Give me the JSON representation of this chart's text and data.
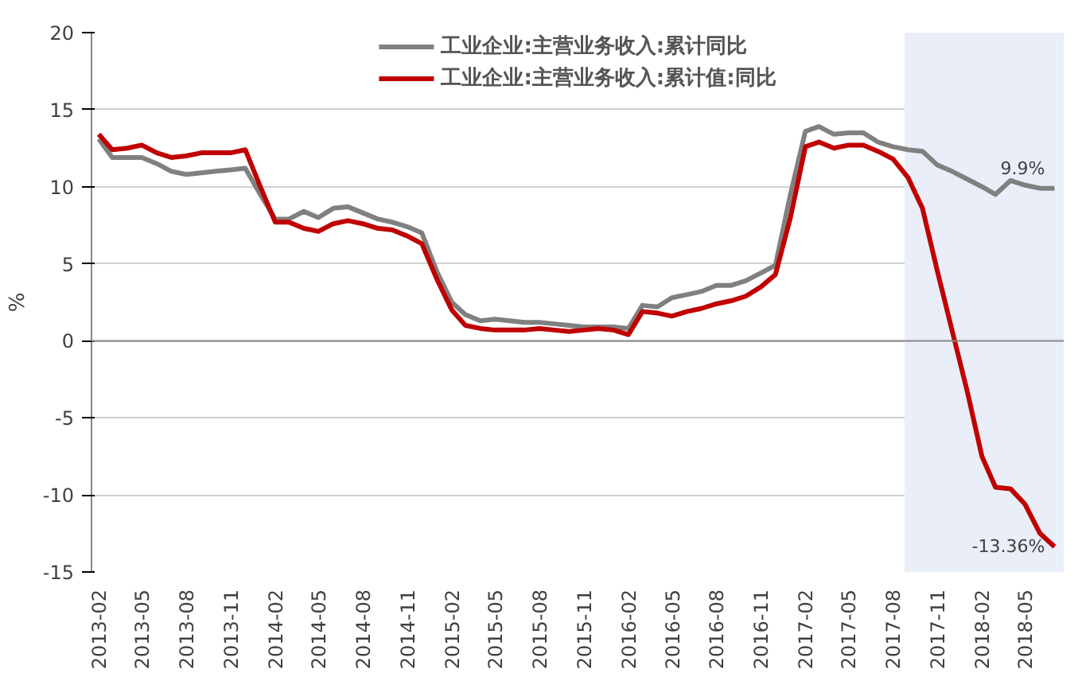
{
  "chart_data": {
    "type": "line",
    "ylabel": "%",
    "x": [
      "2013-02",
      "2013-03",
      "2013-04",
      "2013-05",
      "2013-06",
      "2013-07",
      "2013-08",
      "2013-09",
      "2013-10",
      "2013-11",
      "2013-12",
      "2014-01",
      "2014-02",
      "2014-03",
      "2014-04",
      "2014-05",
      "2014-06",
      "2014-07",
      "2014-08",
      "2014-09",
      "2014-10",
      "2014-11",
      "2014-12",
      "2015-01",
      "2015-02",
      "2015-03",
      "2015-04",
      "2015-05",
      "2015-06",
      "2015-07",
      "2015-08",
      "2015-09",
      "2015-10",
      "2015-11",
      "2015-12",
      "2016-01",
      "2016-02",
      "2016-03",
      "2016-04",
      "2016-05",
      "2016-06",
      "2016-07",
      "2016-08",
      "2016-09",
      "2016-10",
      "2016-11",
      "2016-12",
      "2017-01",
      "2017-02",
      "2017-03",
      "2017-04",
      "2017-05",
      "2017-06",
      "2017-07",
      "2017-08",
      "2017-09",
      "2017-10",
      "2017-11",
      "2017-12",
      "2018-01",
      "2018-02",
      "2018-03",
      "2018-04",
      "2018-05",
      "2018-06",
      "2018-07"
    ],
    "series": [
      {
        "name": "工业企业:主营业务收入:累计同比",
        "color": "#808080",
        "values": [
          13.1,
          11.9,
          11.9,
          11.9,
          11.5,
          11.0,
          10.8,
          10.9,
          11.0,
          11.1,
          11.2,
          9.5,
          7.9,
          7.9,
          8.4,
          8.0,
          8.6,
          8.7,
          8.3,
          7.9,
          7.7,
          7.4,
          7.0,
          4.5,
          2.5,
          1.7,
          1.3,
          1.4,
          1.3,
          1.2,
          1.2,
          1.1,
          1.0,
          0.9,
          0.9,
          0.9,
          0.8,
          2.3,
          2.2,
          2.8,
          3.0,
          3.2,
          3.6,
          3.6,
          3.9,
          4.4,
          4.9,
          9.5,
          13.6,
          13.9,
          13.4,
          13.5,
          13.5,
          12.9,
          12.6,
          12.4,
          12.3,
          11.4,
          11.0,
          10.5,
          10.0,
          9.5,
          10.4,
          10.1,
          9.9,
          9.9
        ]
      },
      {
        "name": "工业企业:主营业务收入:累计值:同比",
        "color": "#c00000",
        "values": [
          13.4,
          12.4,
          12.5,
          12.7,
          12.2,
          11.9,
          12.0,
          12.2,
          12.2,
          12.2,
          12.4,
          10.0,
          7.7,
          7.7,
          7.3,
          7.1,
          7.6,
          7.8,
          7.6,
          7.3,
          7.2,
          6.8,
          6.3,
          4.0,
          2.0,
          1.0,
          0.8,
          0.7,
          0.7,
          0.7,
          0.8,
          0.7,
          0.6,
          0.7,
          0.8,
          0.7,
          0.4,
          1.9,
          1.8,
          1.6,
          1.9,
          2.1,
          2.4,
          2.6,
          2.9,
          3.5,
          4.3,
          8.0,
          12.6,
          12.9,
          12.5,
          12.7,
          12.7,
          12.3,
          11.8,
          10.6,
          8.6,
          4.5,
          0.7,
          -3.2,
          -7.5,
          -9.5,
          -9.6,
          -10.6,
          -12.5,
          -13.36
        ]
      }
    ],
    "annotations": [
      {
        "text": "9.9%",
        "x": "2018-07",
        "y": 9.9
      },
      {
        "text": "-13.36%",
        "x": "2018-07",
        "y": -13.36
      }
    ],
    "bands": [
      {
        "axis": "x",
        "from": "2017-08-25",
        "to": "2018-07-20",
        "color": "#e9eef8"
      }
    ],
    "xlim": [
      "2013-01-17",
      "2018-07-20"
    ],
    "xticks": [
      "2013-02",
      "2013-05",
      "2013-08",
      "2013-11",
      "2014-02",
      "2014-05",
      "2014-08",
      "2014-11",
      "2015-02",
      "2015-05",
      "2015-08",
      "2015-11",
      "2016-02",
      "2016-05",
      "2016-08",
      "2016-11",
      "2017-02",
      "2017-05",
      "2017-08",
      "2017-11",
      "2018-02",
      "2018-05"
    ],
    "ylim": [
      -15,
      20
    ],
    "yticks": [
      -15,
      -10,
      -5,
      0,
      5,
      10,
      15,
      20
    ],
    "grid": "y",
    "legend": "top",
    "marker": "none",
    "line_style": "solid"
  }
}
